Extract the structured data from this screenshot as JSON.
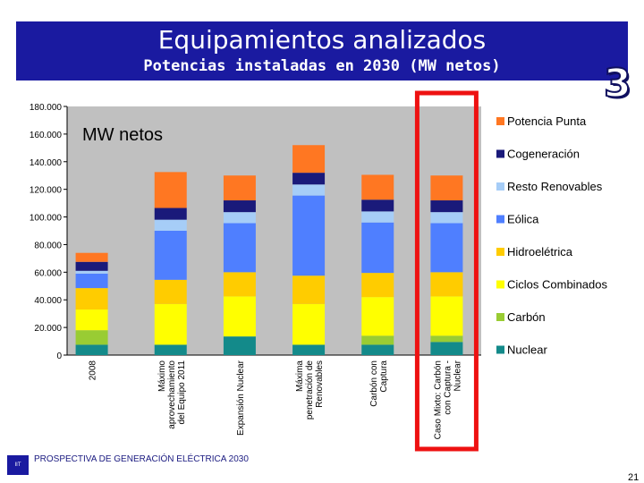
{
  "header": {
    "title": "Equipamientos analizados",
    "subtitle": "Potencias instaladas en 2030 (MW netos)"
  },
  "badge": "3",
  "footer": {
    "text": "PROSPECTIVA DE GENERACIÓN ELÉCTRICA 2030",
    "page": "21",
    "logo": "IIT"
  },
  "colors": {
    "banner": "#1a1aa0",
    "highlight": "#ee1111",
    "plot_bg": "#c0c0c0"
  },
  "chart_data": {
    "type": "bar",
    "stacked": true,
    "annotation": "MW netos",
    "ylim": [
      0,
      180000
    ],
    "yticks": [
      "0",
      "20.000",
      "40.000",
      "60.000",
      "80.000",
      "100.000",
      "120.000",
      "140.000",
      "160.000",
      "180.000"
    ],
    "categories": [
      [
        "2008"
      ],
      [
        "Máximo",
        "aprovechamiento",
        "del Equipo 2011"
      ],
      [
        "Expansión Nuclear"
      ],
      [
        "Máxima",
        "penetración de",
        "Renovables"
      ],
      [
        "Carbón con",
        "Captura"
      ],
      [
        "Caso Mixto: Carbón",
        "con Captura -",
        "Nuclear"
      ]
    ],
    "highlighted_category": 5,
    "series": [
      {
        "name": "Nuclear",
        "color": "#138a8a",
        "values": [
          7500,
          7500,
          13500,
          7500,
          7500,
          9500
        ]
      },
      {
        "name": "Carbón",
        "color": "#99cc33",
        "values": [
          10500,
          0,
          0,
          0,
          6500,
          4500
        ]
      },
      {
        "name": "Ciclos Combinados",
        "color": "#ffff00",
        "values": [
          15000,
          29500,
          29000,
          29500,
          28000,
          28500
        ]
      },
      {
        "name": "Hidroelétrica",
        "color": "#ffcc00",
        "values": [
          15500,
          17500,
          17500,
          20500,
          17500,
          17500
        ]
      },
      {
        "name": "Eólica",
        "color": "#4f7fff",
        "values": [
          10500,
          35500,
          35500,
          58000,
          36500,
          35500
        ]
      },
      {
        "name": "Resto Renovables",
        "color": "#a6cdf7",
        "values": [
          2000,
          8000,
          8000,
          8000,
          8000,
          8000
        ]
      },
      {
        "name": "Cogeneración",
        "color": "#1a1a7a",
        "values": [
          6500,
          8500,
          8500,
          8500,
          8500,
          8500
        ]
      },
      {
        "name": "Potencia Punta",
        "color": "#ff7722",
        "values": [
          6500,
          26000,
          18000,
          20000,
          18000,
          18000
        ]
      }
    ]
  }
}
